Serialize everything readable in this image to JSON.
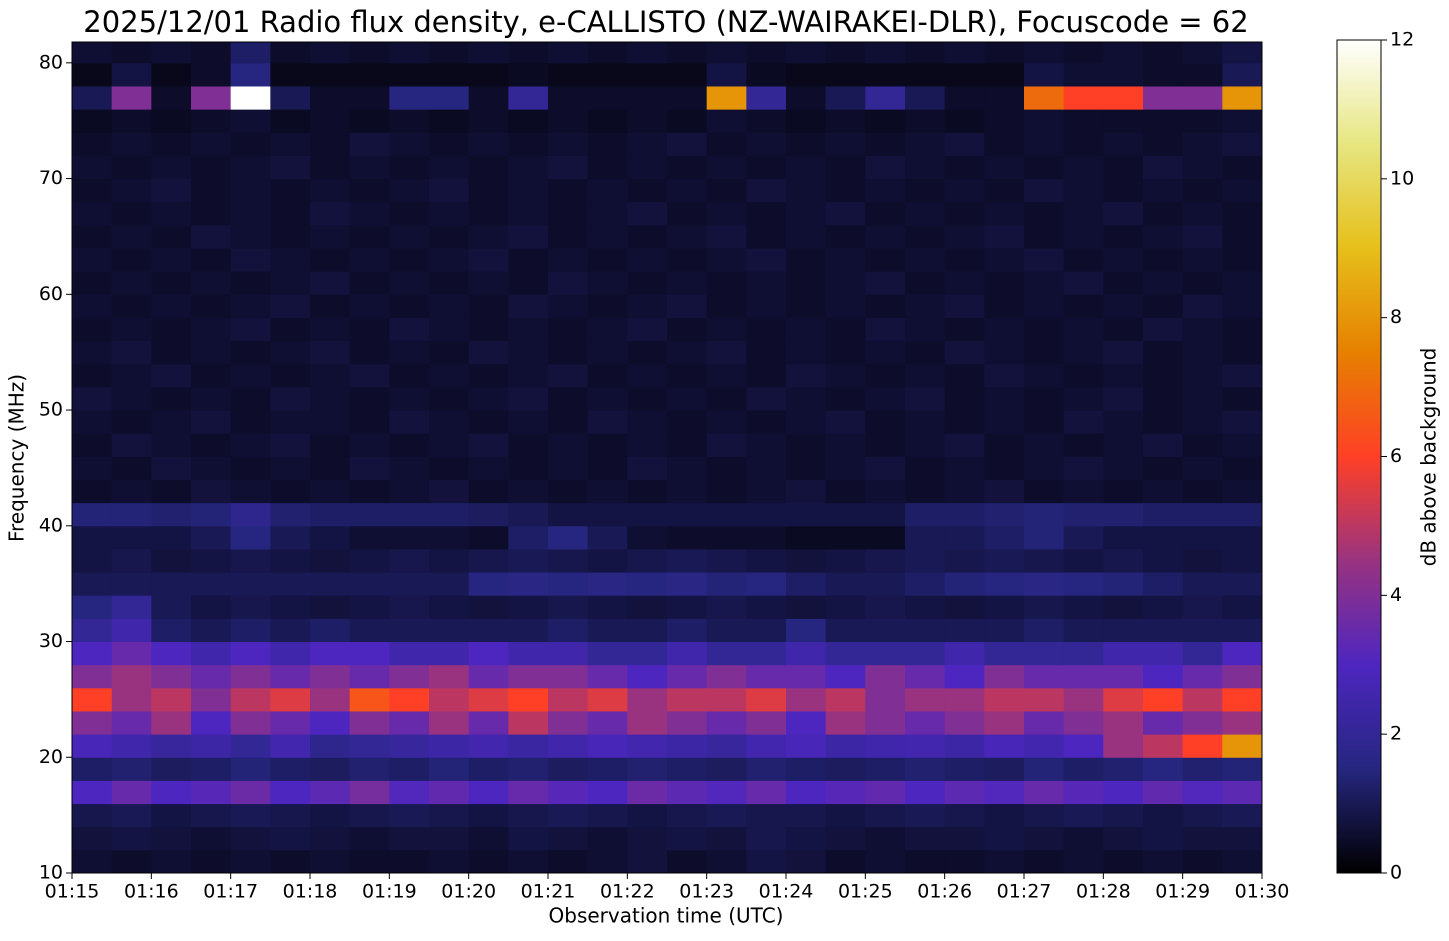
{
  "chart_data": {
    "type": "heatmap",
    "title": "2025/12/01 Radio flux density, e-CALLISTO (NZ-WAIRAKEI-DLR), Focuscode = 62",
    "xlabel": "Observation time (UTC)",
    "ylabel": "Frequency (MHz)",
    "colorbar_label": "dB above background",
    "xlim": [
      75,
      90
    ],
    "ylim": [
      10,
      81.8
    ],
    "xticks": [
      {
        "value": 75,
        "label": "01:15"
      },
      {
        "value": 76,
        "label": "01:16"
      },
      {
        "value": 77,
        "label": "01:17"
      },
      {
        "value": 78,
        "label": "01:18"
      },
      {
        "value": 79,
        "label": "01:19"
      },
      {
        "value": 80,
        "label": "01:20"
      },
      {
        "value": 81,
        "label": "01:21"
      },
      {
        "value": 82,
        "label": "01:22"
      },
      {
        "value": 83,
        "label": "01:23"
      },
      {
        "value": 84,
        "label": "01:24"
      },
      {
        "value": 85,
        "label": "01:25"
      },
      {
        "value": 86,
        "label": "01:26"
      },
      {
        "value": 87,
        "label": "01:27"
      },
      {
        "value": 88,
        "label": "01:28"
      },
      {
        "value": 89,
        "label": "01:29"
      },
      {
        "value": 90,
        "label": "01:30"
      }
    ],
    "yticks": [
      10,
      20,
      30,
      40,
      50,
      60,
      70,
      80
    ],
    "clim": [
      0,
      12
    ],
    "cticks": [
      0,
      2,
      4,
      6,
      8,
      10,
      12
    ],
    "colors": [
      "#000000",
      "#262680",
      "#4d26bf",
      "#993380",
      "#ff4026",
      "#e68000",
      "#e6bf1a",
      "#e6e680",
      "#ffffff"
    ],
    "x_bins": [
      75,
      75.5,
      76,
      76.5,
      77,
      77.5,
      78,
      78.5,
      79,
      79.5,
      80,
      80.5,
      81,
      81.5,
      82,
      82.5,
      83,
      83.5,
      84,
      84.5,
      85,
      85.5,
      86,
      86.5,
      87,
      87.5,
      88,
      88.5,
      89,
      89.5,
      90
    ],
    "y_bins": [
      10,
      12,
      14,
      16,
      18,
      20,
      22,
      24,
      26,
      28,
      30,
      32,
      34,
      36,
      38,
      40,
      42,
      44,
      46,
      48,
      50,
      52,
      54,
      56,
      58,
      60,
      62,
      64,
      66,
      68,
      70,
      72,
      74,
      76,
      78,
      80,
      82
    ],
    "z": [
      [
        0.6,
        0.5,
        0.6,
        0.5,
        0.6,
        0.5,
        0.6,
        0.5,
        0.5,
        0.6,
        0.5,
        0.6,
        0.5,
        0.6,
        0.7,
        0.5,
        0.6,
        0.8,
        0.7,
        0.5,
        0.6,
        0.5,
        0.5,
        0.6,
        0.5,
        0.6,
        0.5,
        0.6,
        0.5,
        0.6
      ],
      [
        0.7,
        0.8,
        0.7,
        0.6,
        0.7,
        0.8,
        0.7,
        0.6,
        0.7,
        0.7,
        0.6,
        0.8,
        0.7,
        0.6,
        0.7,
        0.8,
        0.7,
        0.9,
        0.8,
        0.7,
        0.6,
        0.7,
        0.7,
        0.8,
        0.7,
        0.6,
        0.7,
        0.8,
        0.7,
        0.7
      ],
      [
        0.9,
        1,
        0.8,
        0.9,
        1,
        0.9,
        0.8,
        0.9,
        1,
        0.9,
        0.8,
        0.9,
        1,
        0.9,
        0.8,
        0.9,
        1,
        0.9,
        0.9,
        0.8,
        0.9,
        1,
        0.9,
        0.8,
        0.9,
        1,
        0.9,
        0.8,
        0.9,
        1
      ],
      [
        3,
        3.5,
        3,
        3.2,
        3.6,
        3,
        3.3,
        3.8,
        3.1,
        3.4,
        3,
        3.5,
        3.2,
        3,
        3.6,
        3.3,
        3.1,
        3.5,
        3,
        3.2,
        3.4,
        3,
        3.3,
        3.1,
        3.5,
        3.2,
        3,
        3.4,
        3.1,
        3.3
      ],
      [
        1.2,
        1.3,
        1.1,
        1.2,
        1.4,
        1.2,
        1.1,
        1.3,
        1.2,
        1.4,
        1.2,
        1.3,
        1.1,
        1.2,
        1.3,
        1.2,
        1.1,
        1.3,
        1.2,
        1.1,
        1.2,
        1.3,
        1.2,
        1.1,
        1.4,
        1.2,
        1.3,
        1.5,
        1.3,
        1.4
      ],
      [
        2.8,
        2.5,
        2.2,
        2.4,
        2,
        2.6,
        1.8,
        2,
        2.2,
        2.4,
        2.6,
        2.3,
        2.5,
        2.8,
        2.6,
        2.4,
        2.2,
        2.6,
        2.8,
        2.4,
        2.5,
        2.6,
        2.4,
        2.8,
        2.6,
        3,
        4.5,
        5,
        6,
        8
      ],
      [
        4,
        3.5,
        4.5,
        3,
        4,
        3.5,
        3,
        4,
        3.5,
        4.5,
        3.5,
        5,
        4,
        3.5,
        4.5,
        4,
        3.5,
        4,
        3,
        4.5,
        4,
        3.5,
        4,
        4.5,
        3.5,
        4,
        4.5,
        3.5,
        4,
        4.5
      ],
      [
        6,
        4.5,
        5,
        4,
        5,
        5.5,
        4.5,
        6.5,
        6,
        5,
        5.5,
        6,
        5,
        5.5,
        4.5,
        5,
        5,
        5.5,
        4.5,
        5,
        4,
        4.5,
        4.5,
        5,
        5,
        4.5,
        5.5,
        6,
        5,
        6
      ],
      [
        4,
        4.5,
        4,
        3.5,
        4,
        3.5,
        4,
        3.5,
        4,
        4.5,
        3.5,
        4,
        4,
        3.5,
        3,
        3.5,
        4,
        3.5,
        3.5,
        3,
        4,
        3.5,
        3,
        4,
        3.5,
        3.5,
        3.5,
        3,
        3.5,
        4
      ],
      [
        3,
        3.5,
        3,
        2.5,
        3,
        2.5,
        3,
        3,
        2.5,
        2.5,
        3,
        2.5,
        2.5,
        2,
        2,
        2.5,
        2,
        2,
        2.5,
        2,
        2,
        2,
        2.5,
        2,
        2,
        2,
        2.5,
        2.5,
        2,
        3
      ],
      [
        2,
        2.5,
        1.2,
        1,
        1.2,
        1,
        1.2,
        1,
        1,
        1,
        1,
        1,
        1.2,
        1,
        1,
        1.2,
        1,
        1,
        1.5,
        1,
        1,
        1,
        1,
        1,
        1.2,
        1,
        1,
        1,
        1,
        1
      ],
      [
        1.5,
        2,
        1,
        0.8,
        0.9,
        0.8,
        0.7,
        0.8,
        0.9,
        0.8,
        0.7,
        0.8,
        0.9,
        0.8,
        0.7,
        0.8,
        0.9,
        0.8,
        0.7,
        0.8,
        0.9,
        0.8,
        0.7,
        0.8,
        0.9,
        0.8,
        0.7,
        0.8,
        0.9,
        0.8
      ],
      [
        1,
        1,
        1,
        1,
        1,
        1,
        1,
        1,
        1,
        1,
        1.5,
        1.6,
        1.5,
        1.6,
        1.5,
        1.6,
        1.4,
        1.5,
        1.2,
        1,
        1,
        1.2,
        1.4,
        1.5,
        1.6,
        1.5,
        1.4,
        1.2,
        1,
        1
      ],
      [
        0.8,
        0.9,
        0.7,
        0.8,
        0.9,
        0.8,
        0.7,
        0.8,
        0.9,
        0.8,
        0.9,
        1,
        0.9,
        0.8,
        0.9,
        1,
        0.9,
        0.8,
        0.7,
        0.8,
        0.9,
        1,
        0.9,
        1,
        0.9,
        0.8,
        0.9,
        0.8,
        0.7,
        0.8
      ],
      [
        0.8,
        0.8,
        0.8,
        1,
        1.5,
        1,
        0.8,
        0.6,
        0.6,
        0.6,
        0.5,
        1.2,
        1.5,
        1,
        0.6,
        0.5,
        0.5,
        0.5,
        0.4,
        0.4,
        0.4,
        1,
        1,
        1.2,
        1.4,
        1,
        0.8,
        0.8,
        0.8,
        0.8
      ],
      [
        1.4,
        1.4,
        1.3,
        1.4,
        1.8,
        1.3,
        1.2,
        1.2,
        1.2,
        1.2,
        1.1,
        1,
        0.8,
        0.8,
        0.8,
        0.8,
        0.8,
        0.8,
        0.8,
        0.8,
        0.8,
        1.2,
        1.2,
        1.3,
        1.4,
        1.3,
        1.3,
        1.2,
        1.2,
        1.2
      ],
      [
        0.5,
        0.6,
        0.5,
        0.7,
        0.6,
        0.5,
        0.6,
        0.5,
        0.6,
        0.7,
        0.5,
        0.6,
        0.5,
        0.6,
        0.5,
        0.6,
        0.5,
        0.6,
        0.7,
        0.5,
        0.6,
        0.5,
        0.6,
        0.7,
        0.5,
        0.6,
        0.5,
        0.6,
        0.5,
        0.6
      ],
      [
        0.6,
        0.5,
        0.7,
        0.6,
        0.5,
        0.6,
        0.5,
        0.7,
        0.6,
        0.5,
        0.6,
        0.5,
        0.6,
        0.5,
        0.7,
        0.6,
        0.5,
        0.6,
        0.5,
        0.6,
        0.7,
        0.5,
        0.6,
        0.5,
        0.6,
        0.7,
        0.6,
        0.5,
        0.6,
        0.5
      ],
      [
        0.5,
        0.7,
        0.6,
        0.5,
        0.6,
        0.7,
        0.5,
        0.6,
        0.5,
        0.6,
        0.7,
        0.5,
        0.6,
        0.5,
        0.6,
        0.5,
        0.7,
        0.6,
        0.5,
        0.6,
        0.5,
        0.6,
        0.7,
        0.5,
        0.6,
        0.5,
        0.6,
        0.7,
        0.5,
        0.6
      ],
      [
        0.6,
        0.5,
        0.6,
        0.7,
        0.5,
        0.6,
        0.6,
        0.5,
        0.7,
        0.6,
        0.5,
        0.6,
        0.5,
        0.7,
        0.6,
        0.5,
        0.6,
        0.5,
        0.6,
        0.7,
        0.5,
        0.6,
        0.5,
        0.6,
        0.5,
        0.7,
        0.6,
        0.5,
        0.6,
        0.7
      ],
      [
        0.7,
        0.6,
        0.5,
        0.6,
        0.5,
        0.7,
        0.6,
        0.5,
        0.6,
        0.5,
        0.6,
        0.7,
        0.5,
        0.6,
        0.5,
        0.6,
        0.5,
        0.7,
        0.6,
        0.5,
        0.6,
        0.7,
        0.5,
        0.6,
        0.5,
        0.6,
        0.7,
        0.5,
        0.6,
        0.5
      ],
      [
        0.5,
        0.6,
        0.7,
        0.5,
        0.6,
        0.5,
        0.6,
        0.7,
        0.5,
        0.6,
        0.5,
        0.6,
        0.7,
        0.5,
        0.6,
        0.5,
        0.6,
        0.5,
        0.7,
        0.6,
        0.5,
        0.6,
        0.5,
        0.7,
        0.6,
        0.5,
        0.6,
        0.5,
        0.6,
        0.7
      ],
      [
        0.6,
        0.7,
        0.5,
        0.6,
        0.5,
        0.6,
        0.7,
        0.5,
        0.6,
        0.5,
        0.7,
        0.6,
        0.5,
        0.6,
        0.5,
        0.6,
        0.7,
        0.5,
        0.6,
        0.5,
        0.6,
        0.5,
        0.7,
        0.6,
        0.5,
        0.6,
        0.7,
        0.5,
        0.6,
        0.5
      ],
      [
        0.5,
        0.6,
        0.5,
        0.6,
        0.7,
        0.5,
        0.6,
        0.5,
        0.7,
        0.6,
        0.5,
        0.6,
        0.5,
        0.6,
        0.7,
        0.5,
        0.6,
        0.5,
        0.6,
        0.5,
        0.7,
        0.6,
        0.5,
        0.6,
        0.5,
        0.6,
        0.5,
        0.7,
        0.6,
        0.5
      ],
      [
        0.6,
        0.5,
        0.6,
        0.5,
        0.6,
        0.7,
        0.5,
        0.6,
        0.5,
        0.6,
        0.5,
        0.7,
        0.6,
        0.5,
        0.6,
        0.7,
        0.5,
        0.6,
        0.5,
        0.6,
        0.5,
        0.6,
        0.7,
        0.5,
        0.6,
        0.5,
        0.6,
        0.5,
        0.7,
        0.6
      ],
      [
        0.5,
        0.6,
        0.5,
        0.6,
        0.5,
        0.6,
        0.7,
        0.5,
        0.6,
        0.5,
        0.6,
        0.5,
        0.7,
        0.6,
        0.5,
        0.6,
        0.5,
        0.6,
        0.5,
        0.6,
        0.7,
        0.5,
        0.6,
        0.5,
        0.6,
        0.7,
        0.5,
        0.6,
        0.5,
        0.6
      ],
      [
        0.6,
        0.5,
        0.6,
        0.5,
        0.7,
        0.6,
        0.5,
        0.6,
        0.5,
        0.6,
        0.7,
        0.5,
        0.6,
        0.5,
        0.6,
        0.5,
        0.6,
        0.7,
        0.5,
        0.6,
        0.5,
        0.6,
        0.5,
        0.6,
        0.7,
        0.5,
        0.6,
        0.5,
        0.6,
        0.5
      ],
      [
        0.5,
        0.6,
        0.5,
        0.7,
        0.6,
        0.5,
        0.6,
        0.5,
        0.6,
        0.5,
        0.6,
        0.7,
        0.5,
        0.6,
        0.5,
        0.6,
        0.7,
        0.5,
        0.6,
        0.5,
        0.6,
        0.5,
        0.6,
        0.7,
        0.5,
        0.6,
        0.5,
        0.6,
        0.7,
        0.5
      ],
      [
        0.6,
        0.5,
        0.6,
        0.5,
        0.6,
        0.5,
        0.7,
        0.6,
        0.5,
        0.6,
        0.5,
        0.6,
        0.5,
        0.6,
        0.7,
        0.5,
        0.6,
        0.5,
        0.6,
        0.7,
        0.5,
        0.6,
        0.5,
        0.6,
        0.5,
        0.6,
        0.7,
        0.5,
        0.6,
        0.5
      ],
      [
        0.5,
        0.6,
        0.7,
        0.5,
        0.6,
        0.5,
        0.6,
        0.5,
        0.6,
        0.7,
        0.5,
        0.6,
        0.5,
        0.6,
        0.5,
        0.6,
        0.5,
        0.7,
        0.6,
        0.5,
        0.6,
        0.5,
        0.6,
        0.5,
        0.7,
        0.6,
        0.5,
        0.6,
        0.5,
        0.6
      ],
      [
        0.6,
        0.5,
        0.6,
        0.5,
        0.6,
        0.7,
        0.5,
        0.6,
        0.5,
        0.6,
        0.5,
        0.6,
        0.7,
        0.5,
        0.6,
        0.5,
        0.6,
        0.5,
        0.6,
        0.5,
        0.7,
        0.6,
        0.5,
        0.6,
        0.5,
        0.6,
        0.5,
        0.7,
        0.6,
        0.5
      ],
      [
        0.5,
        0.6,
        0.5,
        0.6,
        0.5,
        0.6,
        0.5,
        0.7,
        0.6,
        0.5,
        0.6,
        0.5,
        0.6,
        0.5,
        0.6,
        0.7,
        0.5,
        0.6,
        0.5,
        0.6,
        0.5,
        0.6,
        0.7,
        0.5,
        0.6,
        0.5,
        0.6,
        0.5,
        0.6,
        0.7
      ],
      [
        0.4,
        0.5,
        0.4,
        0.5,
        0.6,
        0.4,
        0.5,
        0.4,
        0.5,
        0.4,
        0.5,
        0.4,
        0.5,
        0.4,
        0.5,
        0.4,
        0.6,
        0.5,
        0.4,
        0.5,
        0.4,
        0.5,
        0.4,
        0.5,
        0.6,
        0.5,
        0.5,
        0.5,
        0.5,
        0.6
      ],
      [
        1,
        4,
        0.5,
        4,
        12,
        1,
        0.5,
        0.5,
        1.5,
        1.5,
        0.5,
        2,
        0.5,
        0.5,
        0.5,
        0.5,
        8,
        2,
        0.5,
        1,
        2,
        1,
        0.5,
        0.5,
        7,
        6,
        6,
        4,
        4,
        8
      ],
      [
        0.3,
        0.8,
        0.3,
        0.5,
        1.5,
        0.3,
        0.3,
        0.3,
        0.3,
        0.3,
        0.3,
        0.4,
        0.3,
        0.3,
        0.3,
        0.3,
        0.8,
        0.4,
        0.3,
        0.3,
        0.3,
        0.3,
        0.3,
        0.3,
        0.8,
        0.6,
        0.6,
        0.5,
        0.5,
        1
      ],
      [
        0.6,
        0.5,
        0.6,
        0.5,
        1.2,
        0.5,
        0.6,
        0.5,
        0.6,
        0.5,
        0.6,
        0.5,
        0.6,
        0.5,
        0.6,
        0.5,
        0.6,
        0.5,
        0.6,
        0.5,
        0.6,
        0.5,
        0.6,
        0.5,
        0.6,
        0.5,
        0.6,
        0.5,
        0.6,
        0.8
      ]
    ]
  }
}
